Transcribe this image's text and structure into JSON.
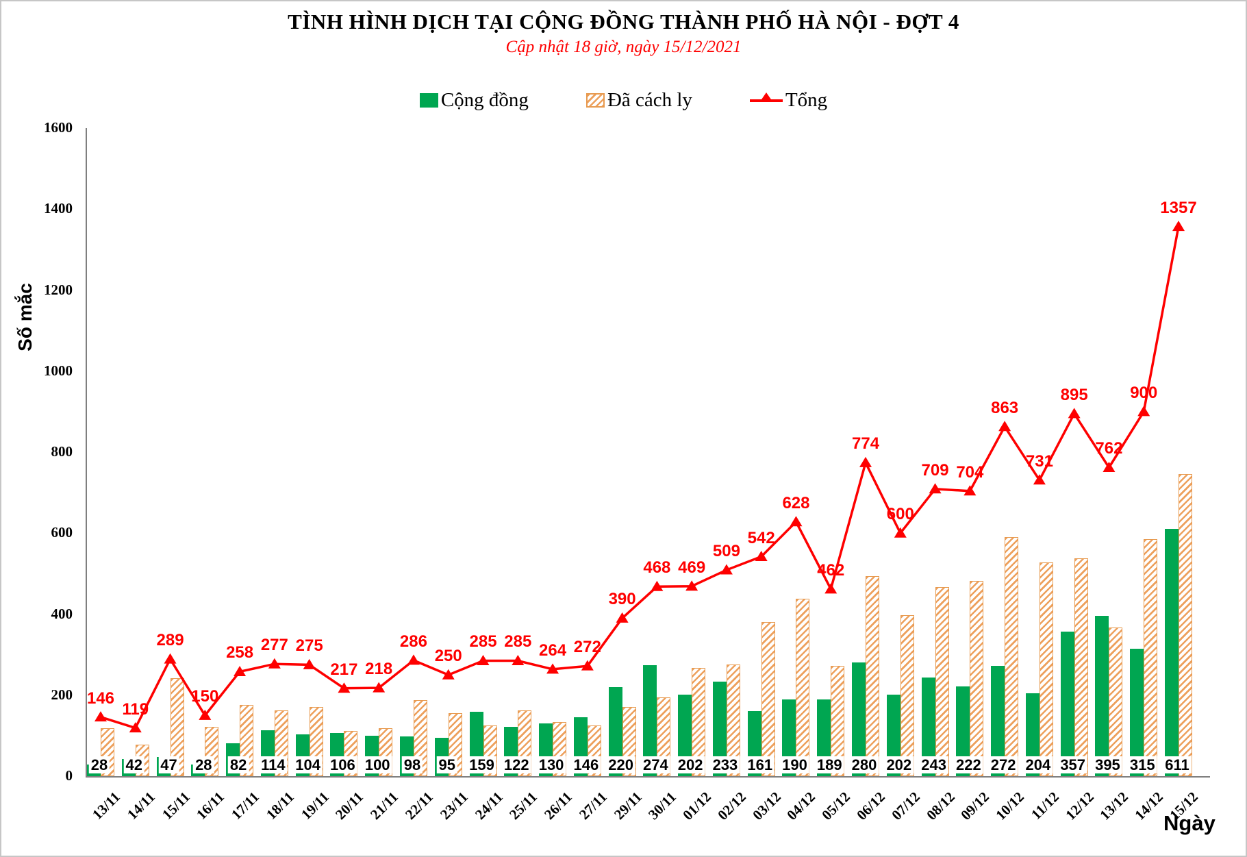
{
  "chart_data": {
    "type": "combo",
    "title": "TÌNH HÌNH DỊCH TẠI CỘNG ĐỒNG THÀNH PHỐ HÀ NỘI - ĐỢT 4",
    "subtitle": "Cập nhật 18 giờ, ngày 15/12/2021",
    "xlabel": "Ngày",
    "ylabel": "Số mắc",
    "ylim": [
      0,
      1600
    ],
    "y_ticks": [
      "0",
      "200",
      "400",
      "600",
      "800",
      "1000",
      "1200",
      "1400",
      "1600"
    ],
    "grid": false,
    "legend_position": "top",
    "categories": [
      "13/11",
      "14/11",
      "15/11",
      "16/11",
      "17/11",
      "18/11",
      "19/11",
      "20/11",
      "21/11",
      "22/11",
      "23/11",
      "24/11",
      "25/11",
      "26/11",
      "27/11",
      "29/11",
      "30/11",
      "01/12",
      "02/12",
      "03/12",
      "04/12",
      "05/12",
      "06/12",
      "07/12",
      "08/12",
      "09/12",
      "10/12",
      "11/12",
      "12/12",
      "13/12",
      "14/12",
      "15/12"
    ],
    "series": [
      {
        "name": "Cộng đồng",
        "type": "bar",
        "color": "#00a651",
        "labels_shown": true,
        "values": [
          28,
          42,
          47,
          28,
          82,
          114,
          104,
          106,
          100,
          98,
          95,
          159,
          122,
          130,
          146,
          220,
          274,
          202,
          233,
          161,
          190,
          189,
          280,
          202,
          243,
          222,
          272,
          204,
          357,
          395,
          315,
          611
        ]
      },
      {
        "name": "Đã cách ly",
        "type": "bar",
        "color": "#e79a4f",
        "pattern": "diagonal-hatch",
        "labels_shown": false,
        "values": [
          118,
          77,
          242,
          122,
          176,
          163,
          171,
          111,
          118,
          188,
          155,
          126,
          163,
          134,
          126,
          170,
          194,
          267,
          276,
          381,
          438,
          273,
          494,
          398,
          466,
          482,
          591,
          527,
          538,
          367,
          585,
          746
        ]
      },
      {
        "name": "Tổng",
        "type": "line",
        "color": "#fe0000",
        "marker": "triangle-up",
        "labels_shown": true,
        "values": [
          146,
          119,
          289,
          150,
          258,
          277,
          275,
          217,
          218,
          286,
          250,
          285,
          285,
          264,
          272,
          390,
          468,
          469,
          509,
          542,
          628,
          462,
          774,
          600,
          709,
          704,
          863,
          731,
          895,
          762,
          900,
          1357
        ]
      }
    ]
  }
}
